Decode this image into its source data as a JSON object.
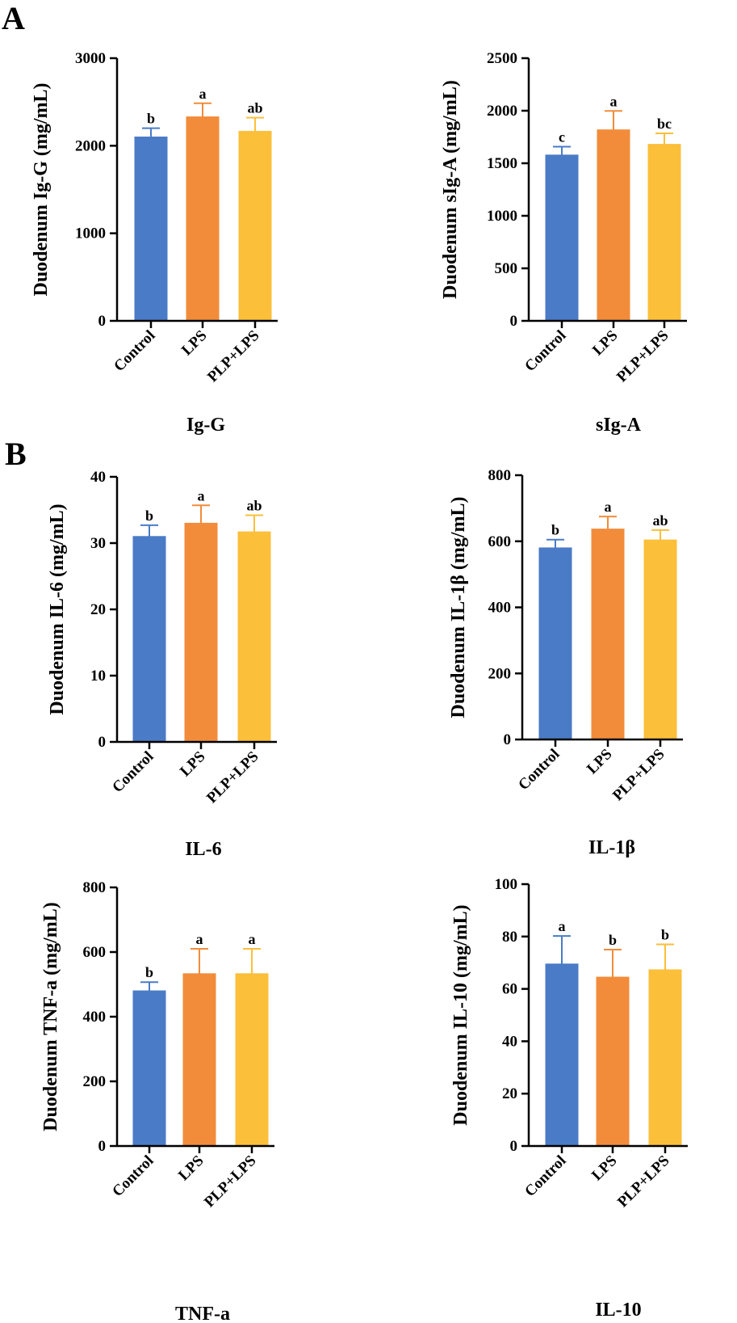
{
  "panel_labels": [
    "A",
    "B"
  ],
  "colors": {
    "control": "#4a7bc6",
    "lps": "#f28c3a",
    "plp_lps": "#fbbf3a"
  },
  "chart_data": [
    {
      "type": "bar",
      "title": "Ig-G",
      "ylabel": "Duodenum Ig-G (mg/mL)",
      "categories": [
        "Control",
        "LPS",
        "PLP+LPS"
      ],
      "values": [
        2100,
        2330,
        2165
      ],
      "errors": [
        100,
        155,
        155
      ],
      "significance": [
        "b",
        "a",
        "ab"
      ],
      "ylim": [
        0,
        3000
      ],
      "yticks": [
        "0",
        "1000",
        "2000",
        "3000"
      ]
    },
    {
      "type": "bar",
      "title": "sIg-A",
      "ylabel": "Duodenum sIg-A (mg/mL)",
      "categories": [
        "Control",
        "LPS",
        "PLP+LPS"
      ],
      "values": [
        1578,
        1818,
        1680
      ],
      "errors": [
        80,
        180,
        105
      ],
      "significance": [
        "c",
        "a",
        "bc"
      ],
      "ylim": [
        0,
        2500
      ],
      "yticks": [
        "0",
        "500",
        "1000",
        "1500",
        "2000",
        "2500"
      ]
    },
    {
      "type": "bar",
      "title": "IL-6",
      "ylabel": "Duodenum IL-6 (mg/mL)",
      "categories": [
        "Control",
        "LPS",
        "PLP+LPS"
      ],
      "values": [
        31.0,
        33.0,
        31.7
      ],
      "errors": [
        1.7,
        2.7,
        2.5
      ],
      "significance": [
        "b",
        "a",
        "ab"
      ],
      "ylim": [
        0,
        40
      ],
      "yticks": [
        "0",
        "10",
        "20",
        "30",
        "40"
      ]
    },
    {
      "type": "bar",
      "title": "IL-1β",
      "ylabel": "Duodenum IL-1β (mg/mL)",
      "categories": [
        "Control",
        "LPS",
        "PLP+LPS"
      ],
      "values": [
        580,
        637,
        604
      ],
      "errors": [
        25,
        38,
        30
      ],
      "significance": [
        "b",
        "a",
        "ab"
      ],
      "ylim": [
        0,
        800
      ],
      "yticks": [
        "0",
        "200",
        "400",
        "600",
        "800"
      ]
    },
    {
      "type": "bar",
      "title": "TNF-a",
      "ylabel": "Duodenum TNF-a (mg/mL)",
      "categories": [
        "Control",
        "LPS",
        "PLP+LPS"
      ],
      "values": [
        480,
        533,
        533
      ],
      "errors": [
        27,
        77,
        77
      ],
      "significance": [
        "b",
        "a",
        "a"
      ],
      "ylim": [
        0,
        800
      ],
      "yticks": [
        "0",
        "200",
        "400",
        "600",
        "800"
      ]
    },
    {
      "type": "bar",
      "title": "IL-10",
      "ylabel": "Duodenum IL-10 (mg/mL)",
      "categories": [
        "Control",
        "LPS",
        "PLP+LPS"
      ],
      "values": [
        69.5,
        64.5,
        67.3
      ],
      "errors": [
        10.7,
        10.5,
        9.7
      ],
      "significance": [
        "a",
        "b",
        "b"
      ],
      "ylim": [
        0,
        100
      ],
      "yticks": [
        "0",
        "20",
        "40",
        "60",
        "80",
        "100"
      ]
    }
  ]
}
